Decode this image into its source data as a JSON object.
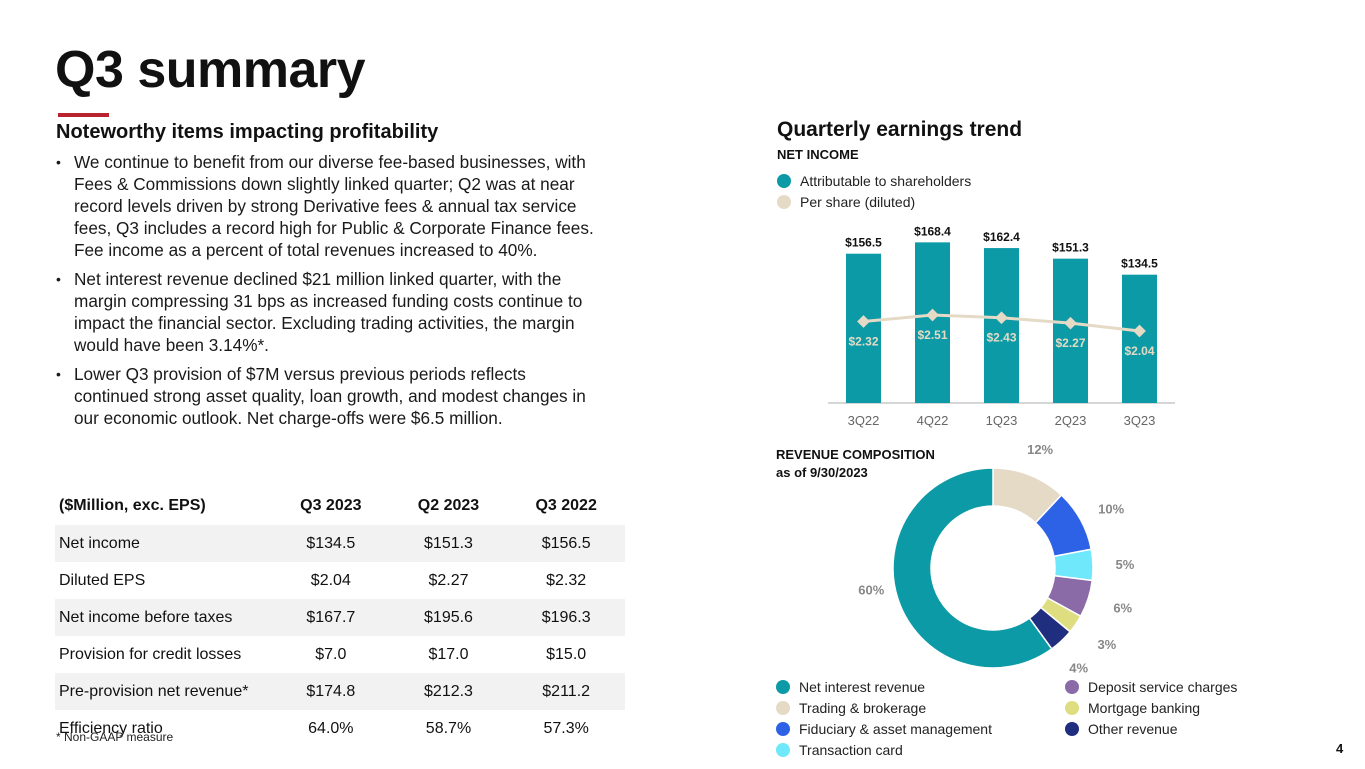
{
  "slide": {
    "title": "Q3 summary",
    "page_number": "4"
  },
  "noteworthy": {
    "heading": "Noteworthy items impacting profitability",
    "bullet_symbol": "•",
    "bullets": [
      "We continue to benefit from our diverse fee-based businesses, with Fees & Commissions down slightly linked quarter; Q2 was at near record levels driven by strong Derivative fees & annual tax service fees, Q3 includes a record high for Public & Corporate Finance fees. Fee income as a percent of total revenues increased to 40%.",
      "Net interest revenue declined $21 million linked quarter, with the margin compressing 31 bps as increased funding costs continue to impact the financial sector. Excluding trading activities, the margin would have been 3.14%*.",
      "Lower Q3 provision of $7M versus previous periods reflects continued strong asset quality, loan growth, and modest changes in our economic outlook. Net charge-offs were $6.5 million."
    ]
  },
  "table": {
    "headers": [
      "($Million, exc. EPS)",
      "Q3 2023",
      "Q2 2023",
      "Q3 2022"
    ],
    "rows": [
      [
        "Net income",
        "$134.5",
        "$151.3",
        "$156.5"
      ],
      [
        "Diluted EPS",
        "$2.04",
        "$2.27",
        "$2.32"
      ],
      [
        "Net income before taxes",
        "$167.7",
        "$195.6",
        "$196.3"
      ],
      [
        "Provision for credit losses",
        "$7.0",
        "$17.0",
        "$15.0"
      ],
      [
        "Pre-provision net revenue*",
        "$174.8",
        "$212.3",
        "$211.2"
      ],
      [
        "Efficiency ratio",
        "64.0%",
        "58.7%",
        "57.3%"
      ]
    ],
    "footnote": "*  Non-GAAP measure"
  },
  "colors": {
    "teal": "#0b9aa6",
    "beige": "#e5dac6",
    "blue": "#2e62e6",
    "cyan": "#6fe8fb",
    "purple": "#8b6aa8",
    "yellow": "#dedd80",
    "navy": "#1f2e7e",
    "accent_red": "#b8232f"
  },
  "chart_data": [
    {
      "type": "bar",
      "title": "Quarterly earnings trend",
      "subtitle": "NET INCOME",
      "categories": [
        "3Q22",
        "4Q22",
        "1Q23",
        "2Q23",
        "3Q23"
      ],
      "series": [
        {
          "name": "Attributable to shareholders",
          "kind": "bar",
          "values": [
            156.5,
            168.4,
            162.4,
            151.3,
            134.5
          ],
          "labels": [
            "$156.5",
            "$168.4",
            "$162.4",
            "$151.3",
            "$134.5"
          ],
          "ylim": [
            0,
            180
          ]
        },
        {
          "name": "Per share (diluted)",
          "kind": "line",
          "values": [
            2.32,
            2.51,
            2.43,
            2.27,
            2.04
          ],
          "labels": [
            "$2.32",
            "$2.51",
            "$2.43",
            "$2.27",
            "$2.04"
          ],
          "ylim": [
            0,
            6.7
          ]
        }
      ],
      "legend": "top-left"
    },
    {
      "type": "pie",
      "variant": "donut",
      "title": "REVENUE COMPOSITION",
      "subtitle": "as of 9/30/2023",
      "slices": [
        {
          "name": "Trading & brokerage",
          "value": 12,
          "label": "12%",
          "color": "#e5dac6"
        },
        {
          "name": "Fiduciary & asset management",
          "value": 10,
          "label": "10%",
          "color": "#2e62e6"
        },
        {
          "name": "Transaction card",
          "value": 5,
          "label": "5%",
          "color": "#6fe8fb"
        },
        {
          "name": "Deposit service charges",
          "value": 6,
          "label": "6%",
          "color": "#8b6aa8"
        },
        {
          "name": "Mortgage banking",
          "value": 3,
          "label": "3%",
          "color": "#dedd80"
        },
        {
          "name": "Other revenue",
          "value": 4,
          "label": "4%",
          "color": "#1f2e7e"
        },
        {
          "name": "Net interest revenue",
          "value": 60,
          "label": "60%",
          "color": "#0b9aa6"
        }
      ],
      "legend_order": [
        "Net interest revenue",
        "Trading & brokerage",
        "Fiduciary & asset management",
        "Transaction card",
        "Deposit service charges",
        "Mortgage banking",
        "Other revenue"
      ],
      "legend": "bottom"
    }
  ]
}
